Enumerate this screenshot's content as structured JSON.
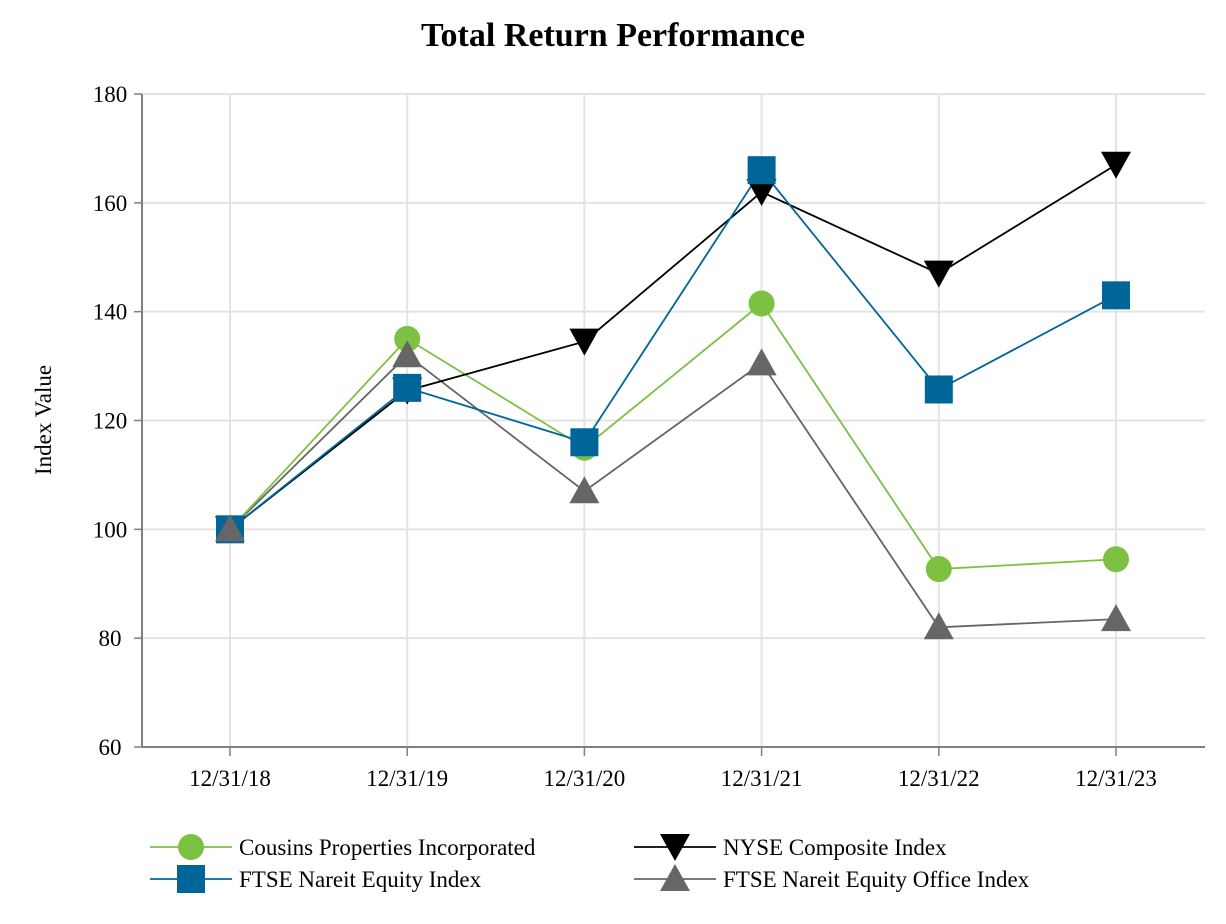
{
  "chart_data": {
    "type": "line",
    "title": "Total Return Performance",
    "xlabel": "",
    "ylabel": "Index Value",
    "categories": [
      "12/31/18",
      "12/31/19",
      "12/31/20",
      "12/31/21",
      "12/31/22",
      "12/31/23"
    ],
    "ylim": [
      60,
      180
    ],
    "yticks": [
      60,
      80,
      100,
      120,
      140,
      160,
      180
    ],
    "grid": true,
    "legend_position": "bottom",
    "series": [
      {
        "name": "Cousins Properties Incorporated",
        "values": [
          100,
          135,
          115,
          141.5,
          92.7,
          94.5
        ],
        "color": "#7dc142",
        "marker": "circle"
      },
      {
        "name": "NYSE Composite Index",
        "values": [
          100,
          125.5,
          134.5,
          162,
          147,
          167
        ],
        "color": "#000000",
        "marker": "triangle-down"
      },
      {
        "name": "FTSE Nareit Equity Index",
        "values": [
          100,
          126,
          116,
          166,
          125.7,
          143
        ],
        "color": "#006699",
        "marker": "square"
      },
      {
        "name": "FTSE Nareit Equity Office Index",
        "values": [
          100,
          132,
          107,
          130.5,
          82,
          83.5
        ],
        "color": "#666666",
        "marker": "triangle-up"
      }
    ]
  },
  "colors": {
    "grid": "#e3e3e3",
    "axis": "#7f7f7f"
  }
}
